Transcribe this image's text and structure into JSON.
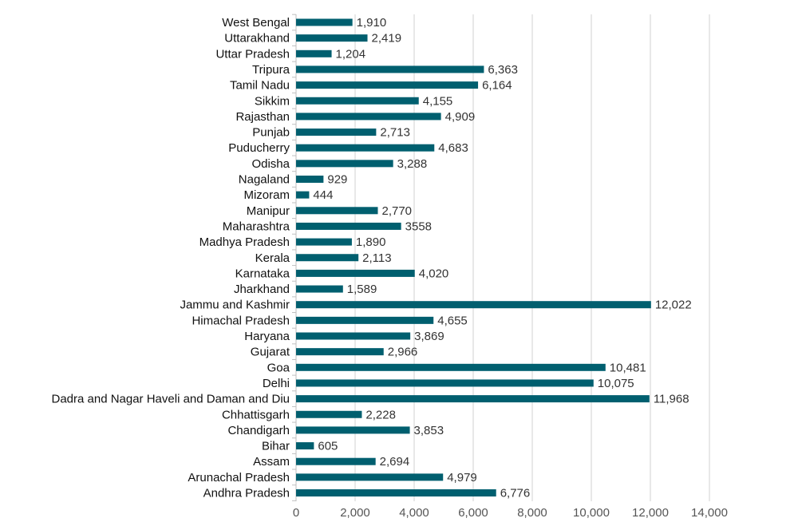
{
  "chart_data": {
    "type": "bar",
    "orientation": "horizontal",
    "title": "",
    "xlabel": "",
    "ylabel": "",
    "categories": [
      "West Bengal",
      "Uttarakhand",
      "Uttar Pradesh",
      "Tripura",
      "Tamil Nadu",
      "Sikkim",
      "Rajasthan",
      "Punjab",
      "Puducherry",
      "Odisha",
      "Nagaland",
      "Mizoram",
      "Manipur",
      "Maharashtra",
      "Madhya Pradesh",
      "Kerala",
      "Karnataka",
      "Jharkhand",
      "Jammu and Kashmir",
      "Himachal Pradesh",
      "Haryana",
      "Gujarat",
      "Goa",
      "Delhi",
      "Dadra and Nagar Haveli and Daman and Diu",
      "Chhattisgarh",
      "Chandigarh",
      "Bihar",
      "Assam",
      "Arunachal Pradesh",
      "Andhra Pradesh"
    ],
    "values": [
      1910,
      2419,
      1204,
      6363,
      6164,
      4155,
      4909,
      2713,
      4683,
      3288,
      929,
      444,
      2770,
      3558,
      1890,
      2113,
      4020,
      1589,
      12022,
      4655,
      3869,
      2966,
      10481,
      10075,
      11968,
      2228,
      3853,
      605,
      2694,
      4979,
      6776
    ],
    "value_labels": [
      "1,910",
      "2,419",
      "1,204",
      "6,363",
      "6,164",
      "4,155",
      "4,909",
      "2,713",
      "4,683",
      "3,288",
      "929",
      "444",
      "2,770",
      "3558",
      "1,890",
      "2,113",
      "4,020",
      "1,589",
      "12,022",
      "4,655",
      "3,869",
      "2,966",
      "10,481",
      "10,075",
      "11,968",
      "2,228",
      "3,853",
      "605",
      "2,694",
      "4,979",
      "6,776"
    ],
    "xlim": [
      0,
      14000
    ],
    "x_ticks": [
      0,
      2000,
      4000,
      6000,
      8000,
      10000,
      12000,
      14000
    ],
    "x_tick_labels": [
      "0",
      "2,000",
      "4,000",
      "6,000",
      "8,000",
      "10,000",
      "12,000",
      "14,000"
    ],
    "grid": "vertical",
    "legend": "none",
    "bar_color": "#005F6F",
    "grid_color": "#D0D0D0"
  }
}
